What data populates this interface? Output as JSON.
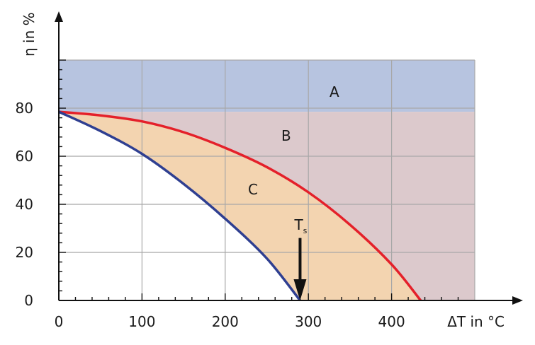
{
  "chart_data": {
    "type": "area",
    "title": "",
    "xlabel": "ΔT in °C",
    "ylabel": "η in %",
    "xlim": [
      0,
      500
    ],
    "ylim": [
      0,
      100
    ],
    "x_ticks": [
      0,
      100,
      200,
      300,
      400
    ],
    "x_tick_labels": [
      "0",
      "100",
      "200",
      "300",
      "400"
    ],
    "y_ticks": [
      0,
      20,
      40,
      60,
      80
    ],
    "y_tick_labels": [
      "0",
      "20",
      "40",
      "60",
      "80"
    ],
    "grid": true,
    "regions": [
      {
        "label": "A",
        "color": "#b7c4e0",
        "description_bounds": {
          "y_from": 78,
          "y_to": 100
        }
      },
      {
        "label": "B",
        "color": "#dcc9cc"
      },
      {
        "label": "C",
        "color": "#f3d4b0"
      }
    ],
    "series": [
      {
        "color": "#e4202a",
        "x": [
          0,
          50,
          100,
          150,
          200,
          250,
          300,
          350,
          400,
          435
        ],
        "y": [
          78.5,
          77,
          74.5,
          70,
          63.5,
          55.5,
          45,
          31.5,
          15,
          0
        ]
      },
      {
        "color": "#2f3f91",
        "x": [
          0,
          50,
          100,
          150,
          200,
          250,
          290
        ],
        "y": [
          78.5,
          70.5,
          61,
          48.5,
          34,
          17.5,
          0
        ]
      }
    ],
    "annotations": [
      {
        "text": "T",
        "subscript": "s",
        "x": 290,
        "y": 0,
        "arrow": "down",
        "arrow_from_y": 26
      }
    ]
  }
}
